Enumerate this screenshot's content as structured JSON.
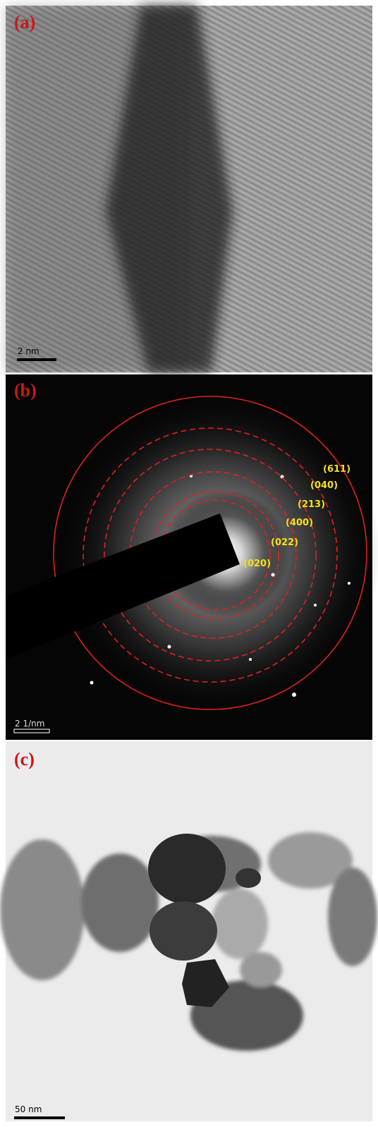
{
  "panels": [
    {
      "label": "(a)",
      "scale_bar": "2 nm"
    },
    {
      "label": "(b)",
      "scale_bar": "2 1/nm",
      "ring_labels": [
        "(611)",
        "(040)",
        "(213)",
        "(400)",
        "(022)",
        "(020)"
      ]
    },
    {
      "label": "(c)",
      "scale_bar": "50 nm"
    }
  ]
}
